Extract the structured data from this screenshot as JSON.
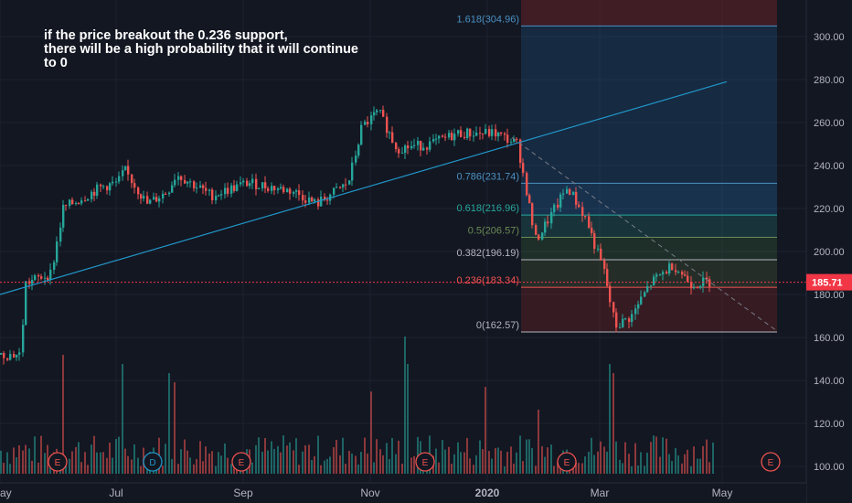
{
  "annotation": {
    "lines": [
      "if the price breakout the 0.236 support,",
      "there will be a high probability that it will continue",
      "to 0"
    ]
  },
  "price_axis": {
    "ticks": [
      "300.00",
      "280.00",
      "260.00",
      "240.00",
      "220.00",
      "200.00",
      "180.00",
      "160.00",
      "140.00",
      "120.00",
      "100.00"
    ],
    "last_price_label": "185.71"
  },
  "time_axis": {
    "labels": [
      "ay",
      "Jul",
      "Sep",
      "Nov",
      "2020",
      "Mar",
      "May"
    ]
  },
  "fib_levels": [
    {
      "label": "1.618(304.96)",
      "color": "#4a90c2"
    },
    {
      "label": "0.786(231.74)",
      "color": "#4a90c2"
    },
    {
      "label": "0.618(216.96)",
      "color": "#26a69a"
    },
    {
      "label": "0.5(206.57)",
      "color": "#6a8a55"
    },
    {
      "label": "0.382(196.19)",
      "color": "#b2b5be"
    },
    {
      "label": "0.236(183.34)",
      "color": "#ef5350"
    },
    {
      "label": "0(162.57)",
      "color": "#b2b5be"
    }
  ],
  "event_markers": [
    "E",
    "D",
    "E",
    "E",
    "E",
    "E"
  ],
  "colors": {
    "background": "#131722",
    "up": "#26a69a",
    "down": "#ef5350",
    "trendline": "#2196c8",
    "last_price": "#f23645",
    "axis_text": "#b2b5be"
  },
  "chart_data": {
    "type": "candlestick",
    "y_axis": {
      "ylim": [
        98,
        318
      ],
      "unit": "price"
    },
    "ohlc_anchor_closes": [
      {
        "x": "late May 2019",
        "close": 152
      },
      {
        "x": "early Jun 2019",
        "close": 185
      },
      {
        "x": "mid Jun 2019",
        "close": 218
      },
      {
        "x": "end Jun 2019",
        "close": 220
      },
      {
        "x": "early Jul 2019",
        "close": 236
      },
      {
        "x": "mid Jul 2019",
        "close": 220
      },
      {
        "x": "late Jul 2019",
        "close": 238
      },
      {
        "x": "Aug 2019",
        "close": 230
      },
      {
        "x": "Sep 2019",
        "close": 232
      },
      {
        "x": "early Oct 2019",
        "close": 222
      },
      {
        "x": "late Oct 2019",
        "close": 265
      },
      {
        "x": "early Nov 2019",
        "close": 247
      },
      {
        "x": "Dec 2019",
        "close": 253
      },
      {
        "x": "Jan 2020",
        "close": 255
      },
      {
        "x": "early Feb 2020",
        "close": 230
      },
      {
        "x": "late Feb 2020",
        "close": 196
      },
      {
        "x": "early Mar 2020",
        "close": 165
      },
      {
        "x": "late Mar 2020",
        "close": 183
      },
      {
        "x": "early Apr 2020",
        "close": 194
      },
      {
        "x": "mid Apr 2020",
        "close": 185.71
      }
    ],
    "last_price": 185.71,
    "fibonacci": [
      {
        "ratio": 1.618,
        "price": 304.96
      },
      {
        "ratio": 0.786,
        "price": 231.74
      },
      {
        "ratio": 0.618,
        "price": 216.96
      },
      {
        "ratio": 0.5,
        "price": 206.57
      },
      {
        "ratio": 0.382,
        "price": 196.19
      },
      {
        "ratio": 0.236,
        "price": 183.34
      },
      {
        "ratio": 0,
        "price": 162.57
      }
    ],
    "volume_present": true,
    "trendlines": [
      "ascending support line",
      "descending dashed line"
    ]
  }
}
